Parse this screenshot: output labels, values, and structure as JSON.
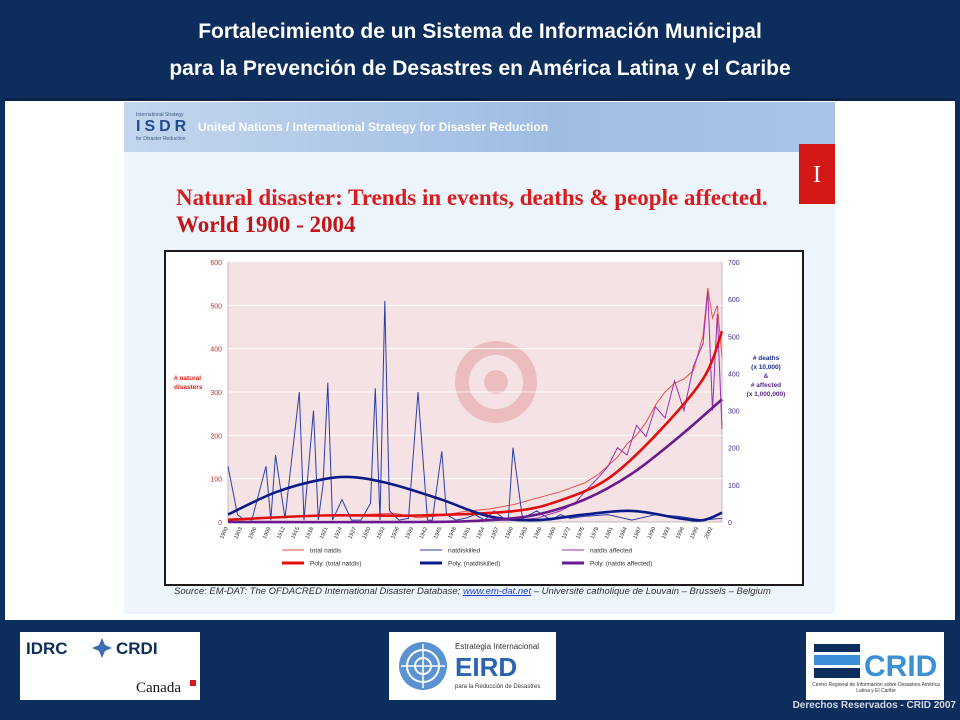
{
  "header": {
    "title_line1": "Fortalecimiento de un Sistema de Información Municipal",
    "title_line2": "para la Prevención de Desastres en América Latina y el Caribe"
  },
  "slide": {
    "banner_logo_small": "International Strategy",
    "banner_logo": "ISDR",
    "banner_logo_sub": "for Disaster Reduction",
    "banner_text": "United Nations / International Strategy for Disaster Reduction",
    "corner_tab": "I",
    "title_line1": "Natural disaster: Trends in events, deaths & people affected.",
    "title_line2": "World 1900 - 2004",
    "source_prefix": "Source: EM-DAT: The OFDACRED International Disaster Database; ",
    "source_link": "www.em-dat.net",
    "source_suffix": " – Université catholique de Louvain – Brussels – Belgium"
  },
  "chart_data": {
    "type": "line",
    "left_axis_label": [
      "# natural",
      "disasters"
    ],
    "right_axis_label": [
      "# deaths",
      "(x 10,000)",
      "&",
      "# affected",
      "(x 1,000,000)"
    ],
    "ylim_left": [
      0,
      600
    ],
    "ylim_right": [
      0,
      700
    ],
    "left_ticks": [
      "0",
      "100",
      "200",
      "300",
      "400",
      "500",
      "600"
    ],
    "right_ticks": [
      "0",
      "100",
      "200",
      "300",
      "400",
      "500",
      "600",
      "700"
    ],
    "x_ticks": [
      "1900",
      "1903",
      "1906",
      "1909",
      "1912",
      "1915",
      "1918",
      "1921",
      "1924",
      "1927",
      "1930",
      "1933",
      "1936",
      "1939",
      "1942",
      "1945",
      "1948",
      "1951",
      "1954",
      "1957",
      "1960",
      "1963",
      "1966",
      "1969",
      "1972",
      "1975",
      "1978",
      "1981",
      "1984",
      "1987",
      "1990",
      "1993",
      "1996",
      "1999",
      "2002"
    ],
    "legend": [
      {
        "label": "total natdis",
        "color": "#e8504a",
        "width": 1
      },
      {
        "label": "natdiskilled",
        "color": "#2b3fa6",
        "width": 1
      },
      {
        "label": "natdis affected",
        "color": "#9b2fb2",
        "width": 1
      },
      {
        "label": "Poly. (total natdis)",
        "color": "#e10e0e",
        "width": 3
      },
      {
        "label": "Poly. (natdiskilled)",
        "color": "#0b1a87",
        "width": 3
      },
      {
        "label": "Poly. (natdis affected)",
        "color": "#6a1a8c",
        "width": 3
      }
    ],
    "series": [
      {
        "name": "total natdis",
        "axis": "left",
        "color": "#e8504a",
        "x": [
          1900,
          1905,
          1910,
          1915,
          1920,
          1925,
          1930,
          1935,
          1940,
          1945,
          1950,
          1955,
          1960,
          1965,
          1970,
          1975,
          1978,
          1980,
          1982,
          1984,
          1986,
          1988,
          1990,
          1992,
          1994,
          1996,
          1998,
          2000,
          2001,
          2002,
          2003,
          2004
        ],
        "y": [
          5,
          8,
          10,
          12,
          15,
          15,
          18,
          20,
          10,
          15,
          25,
          30,
          40,
          55,
          70,
          90,
          110,
          130,
          150,
          180,
          200,
          230,
          270,
          300,
          320,
          330,
          350,
          430,
          540,
          470,
          500,
          380
        ]
      },
      {
        "name": "natdiskilled",
        "axis": "right",
        "color": "#2b3fa6",
        "x": [
          1900,
          1902,
          1903,
          1905,
          1908,
          1909,
          1910,
          1912,
          1915,
          1916,
          1918,
          1919,
          1920,
          1921,
          1922,
          1924,
          1926,
          1928,
          1930,
          1931,
          1932,
          1933,
          1934,
          1936,
          1938,
          1940,
          1942,
          1943,
          1945,
          1946,
          1948,
          1950,
          1952,
          1954,
          1956,
          1958,
          1959,
          1960,
          1962,
          1965,
          1968,
          1970,
          1972,
          1975,
          1980,
          1985,
          1990,
          1995,
          2000,
          2004
        ],
        "x_note": "",
        "y": [
          150,
          20,
          10,
          5,
          150,
          5,
          180,
          10,
          350,
          5,
          300,
          5,
          100,
          375,
          5,
          60,
          5,
          5,
          50,
          360,
          5,
          595,
          30,
          5,
          10,
          350,
          5,
          5,
          190,
          20,
          5,
          10,
          20,
          5,
          30,
          10,
          5,
          200,
          10,
          30,
          5,
          20,
          10,
          15,
          20,
          5,
          20,
          15,
          5,
          10
        ]
      },
      {
        "name": "natdis affected",
        "axis": "right",
        "color": "#9b2fb2",
        "x": [
          1900,
          1920,
          1940,
          1950,
          1960,
          1965,
          1970,
          1973,
          1975,
          1978,
          1980,
          1982,
          1984,
          1986,
          1988,
          1990,
          1992,
          1994,
          1996,
          1998,
          2000,
          2001,
          2002,
          2003,
          2004
        ],
        "y": [
          0,
          0,
          0,
          2,
          5,
          10,
          30,
          50,
          80,
          120,
          150,
          200,
          180,
          260,
          230,
          310,
          280,
          380,
          300,
          420,
          480,
          620,
          300,
          560,
          250
        ]
      }
    ],
    "polynomials": [
      {
        "name": "Poly. (total natdis)",
        "axis": "left",
        "color": "#e10e0e",
        "x": [
          1900,
          1920,
          1940,
          1960,
          1970,
          1980,
          1990,
          2000,
          2004
        ],
        "y": [
          5,
          15,
          15,
          25,
          50,
          100,
          200,
          330,
          440
        ]
      },
      {
        "name": "Poly. (natdiskilled)",
        "axis": "right",
        "color": "#0b1a87",
        "x": [
          1900,
          1910,
          1920,
          1927,
          1935,
          1945,
          1955,
          1965,
          1975,
          1985,
          1995,
          2000,
          2004
        ],
        "y": [
          20,
          80,
          115,
          120,
          100,
          60,
          15,
          5,
          20,
          30,
          10,
          5,
          25
        ]
      },
      {
        "name": "Poly. (natdis affected)",
        "axis": "right",
        "color": "#6a1a8c",
        "x": [
          1900,
          1940,
          1955,
          1965,
          1975,
          1985,
          1995,
          2004
        ],
        "y": [
          0,
          0,
          5,
          20,
          60,
          130,
          230,
          330
        ]
      }
    ]
  },
  "footer": {
    "idrc": "IDRC",
    "crdi": "CRDI",
    "canada": "Canada",
    "eird_top": "Estrategia Internacional",
    "eird": "EIRD",
    "eird_sub": "para la Reducción de Desastres",
    "crid": "CRID",
    "crid_sub": "Centro Regional de Información sobre Desastres América Latina y El Caribe",
    "copyright": "Derechos Reservados - CRID 2007"
  },
  "colors": {
    "navy": "#0d2d5c",
    "plot_bg": "#f5e2e4",
    "red": "#d71d1d"
  }
}
